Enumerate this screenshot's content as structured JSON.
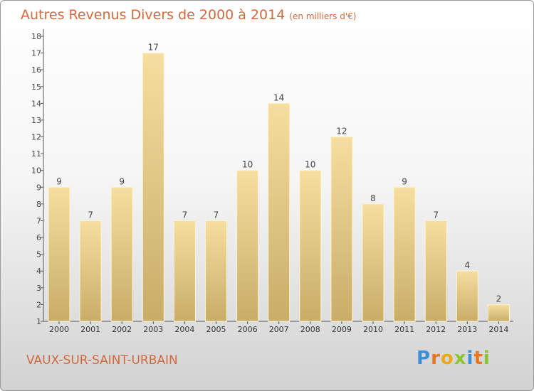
{
  "chart_data": {
    "type": "bar",
    "title": "Autres Revenus Divers de 2000 à 2014",
    "subtitle": "(en milliers d'€)",
    "categories": [
      "2000",
      "2001",
      "2002",
      "2003",
      "2004",
      "2005",
      "2006",
      "2007",
      "2008",
      "2009",
      "2010",
      "2011",
      "2012",
      "2013",
      "2014"
    ],
    "values": [
      9,
      7,
      9,
      17,
      7,
      7,
      10,
      14,
      10,
      12,
      8,
      9,
      7,
      4,
      2
    ],
    "ylim": [
      1,
      18
    ],
    "yticks": [
      1,
      2,
      3,
      4,
      5,
      6,
      7,
      8,
      9,
      10,
      11,
      12,
      13,
      14,
      15,
      16,
      17,
      18
    ],
    "grid": false,
    "bar_color_top": "#f6dea0",
    "bar_color_bottom": "#c8ad68"
  },
  "location": "VAUX-SUR-SAINT-URBAIN",
  "logo": {
    "letters": [
      "P",
      "r",
      "o",
      "x",
      "i",
      "t",
      "i"
    ],
    "colors": [
      "#3b8fd6",
      "#e8771f",
      "#e8a81f",
      "#8ac530",
      "#3b8fd6",
      "#e8771f",
      "#8ac530"
    ]
  }
}
